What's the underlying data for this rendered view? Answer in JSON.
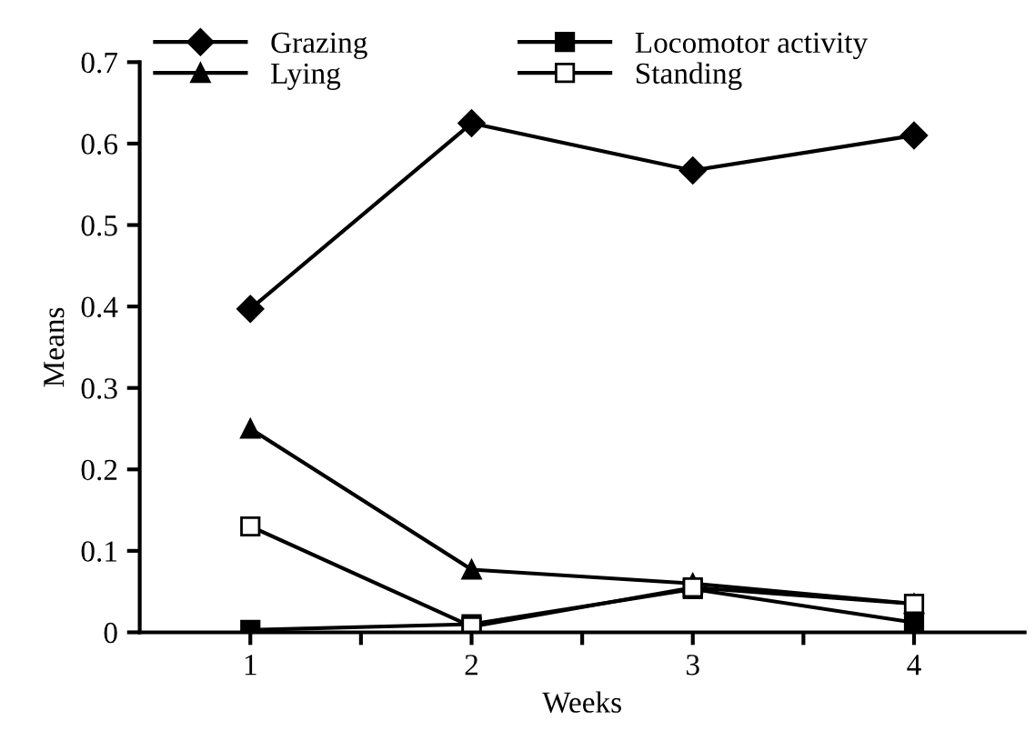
{
  "chart_data": {
    "type": "line",
    "xlabel": "Weeks",
    "ylabel": "Means",
    "x": [
      1,
      2,
      3,
      4
    ],
    "xlim": [
      0.5,
      4.5
    ],
    "xticks": [
      1,
      {
        "value": 1.5,
        "label": null
      },
      2,
      {
        "value": 2.5,
        "label": null
      },
      3,
      {
        "value": 3.5,
        "label": null
      },
      4
    ],
    "ylim": [
      0,
      0.7
    ],
    "yticks": [
      0,
      0.1,
      0.2,
      0.3,
      0.4,
      0.5,
      0.6,
      0.7
    ],
    "grid": false,
    "legend": "top",
    "series": [
      {
        "name": "Grazing",
        "color": "#000000",
        "marker": "diamond",
        "values": [
          0.397,
          0.625,
          0.567,
          0.61
        ]
      },
      {
        "name": "Lying",
        "color": "#000000",
        "marker": "triangle",
        "values": [
          0.25,
          0.077,
          0.06,
          0.035
        ]
      },
      {
        "name": "Locomotor activity",
        "color": "#000000",
        "marker": "square",
        "values": [
          0.003,
          0.01,
          0.053,
          0.012
        ]
      },
      {
        "name": "Standing",
        "color": "#000000",
        "marker": "square_open",
        "values": [
          0.13,
          0.007,
          0.055,
          0.035
        ]
      }
    ]
  }
}
